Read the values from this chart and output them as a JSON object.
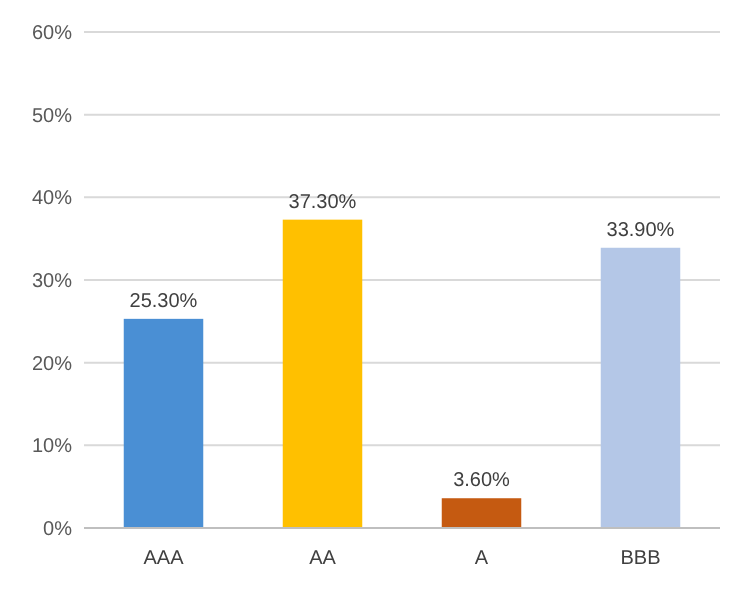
{
  "chart_data": {
    "type": "bar",
    "categories": [
      "AAA",
      "AA",
      "A",
      "BBB"
    ],
    "values": [
      25.3,
      37.3,
      3.6,
      33.9
    ],
    "colors": [
      "#4a8fd4",
      "#ffc000",
      "#c55a11",
      "#b4c7e7"
    ],
    "value_labels": [
      "25.30%",
      "37.30%",
      "3.60%",
      "33.90%"
    ],
    "ylim": [
      0,
      60
    ],
    "yticks": [
      {
        "value": 0,
        "label": "0%"
      },
      {
        "value": 10,
        "label": "10%"
      },
      {
        "value": 20,
        "label": "20%"
      },
      {
        "value": 30,
        "label": "30%"
      },
      {
        "value": 40,
        "label": "40%"
      },
      {
        "value": 50,
        "label": "50%"
      },
      {
        "value": 60,
        "label": "60%"
      }
    ],
    "grid": "y"
  }
}
